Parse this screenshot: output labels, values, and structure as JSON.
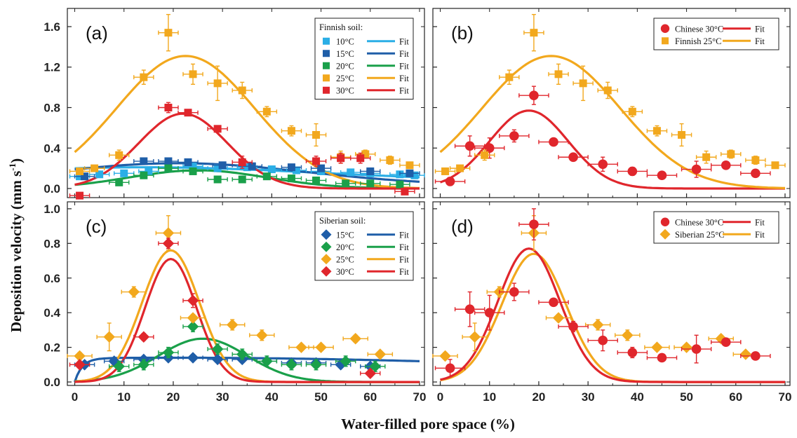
{
  "colors": {
    "c10": "#2aaee6",
    "c15": "#1f5ea8",
    "c20": "#1aa04a",
    "c25": "#f2a81d",
    "c30": "#e0262c"
  },
  "axis": {
    "ylabel_main": "Deposition velocity (mm s",
    "ylabel_sup": "-1",
    "ylabel_end": ")",
    "xlabel": "Water-filled pore space (%)",
    "xticks": [
      0,
      10,
      20,
      30,
      40,
      50,
      60,
      70
    ],
    "xtick_labels": [
      "0",
      "10",
      "20",
      "30",
      "40",
      "50",
      "60",
      "70"
    ],
    "yticks_top": [
      0,
      0.4,
      0.8,
      1.2,
      1.6
    ],
    "ytick_labels_top": [
      "0.0",
      "0.4",
      "0.8",
      "1.2",
      "1.6"
    ],
    "yticks_bottom": [
      0,
      0.2,
      0.4,
      0.6,
      0.8,
      1.0
    ],
    "ytick_labels_bottom": [
      "0.0",
      "0.2",
      "0.4",
      "0.6",
      "0.8",
      "1.0"
    ]
  },
  "chart_data": [
    {
      "panel": "a",
      "label": "(a)",
      "type": "scatter",
      "xlim": [
        -1.5,
        71
      ],
      "ylim": [
        -0.09,
        1.78
      ],
      "legend": {
        "title": "Finnish soil:",
        "placement": "top-right",
        "fit_label": "Fit",
        "entries": [
          {
            "label": "10°C",
            "color_key": "c10",
            "marker": "square"
          },
          {
            "label": "15°C",
            "color_key": "c15",
            "marker": "square"
          },
          {
            "label": "20°C",
            "color_key": "c20",
            "marker": "square"
          },
          {
            "label": "25°C",
            "color_key": "c25",
            "marker": "square"
          },
          {
            "label": "30°C",
            "color_key": "c30",
            "marker": "square"
          }
        ]
      },
      "series": [
        {
          "name": "10°C",
          "color_key": "c10",
          "marker": "square",
          "x": [
            1,
            5,
            10,
            15,
            19,
            24,
            29,
            35,
            40,
            45,
            50,
            56,
            60,
            66,
            69
          ],
          "y": [
            0.12,
            0.14,
            0.15,
            0.17,
            0.2,
            0.22,
            0.2,
            0.21,
            0.19,
            0.18,
            0.17,
            0.16,
            0.15,
            0.14,
            0.13
          ],
          "xerr": 2,
          "yerr": 0.02,
          "fit": {
            "A": 0.14,
            "mu": 14,
            "sigma": 36,
            "base": 0.07
          }
        },
        {
          "name": "15°C",
          "color_key": "c15",
          "marker": "square",
          "x": [
            2,
            14,
            19,
            23,
            30,
            36,
            44,
            50,
            60,
            68
          ],
          "y": [
            0.12,
            0.27,
            0.27,
            0.26,
            0.23,
            0.22,
            0.21,
            0.2,
            0.17,
            0.15
          ],
          "xerr": 2,
          "yerr": 0.03,
          "fit": {
            "A": 0.22,
            "mu": 21,
            "sigma": 26,
            "base": 0.03
          }
        },
        {
          "name": "20°C",
          "color_key": "c20",
          "marker": "square",
          "x": [
            9,
            14,
            19,
            24,
            29,
            34,
            39,
            44,
            49,
            55,
            60,
            66
          ],
          "y": [
            0.06,
            0.13,
            0.2,
            0.17,
            0.09,
            0.09,
            0.12,
            0.1,
            0.08,
            0.05,
            0.05,
            0.04
          ],
          "xerr": 2,
          "yerr": 0.03,
          "fit": {
            "A": 0.18,
            "mu": 25,
            "sigma": 14,
            "base": 0.0
          }
        },
        {
          "name": "25°C",
          "color_key": "c25",
          "marker": "square",
          "x": [
            1,
            4,
            9,
            14,
            19,
            24,
            29,
            34,
            39,
            44,
            49,
            54,
            59,
            64,
            68
          ],
          "y": [
            0.17,
            0.2,
            0.33,
            1.1,
            1.54,
            1.13,
            1.04,
            0.97,
            0.76,
            0.57,
            0.53,
            0.31,
            0.34,
            0.28,
            0.23
          ],
          "xerr": 2,
          "yerr": [
            0.03,
            0.03,
            0.05,
            0.07,
            0.18,
            0.1,
            0.17,
            0.08,
            0.05,
            0.05,
            0.11,
            0.06,
            0.04,
            0.04,
            0.03
          ],
          "fit": {
            "A": 1.31,
            "mu": 22.5,
            "sigma": 14,
            "base": 0.0
          }
        },
        {
          "name": "30°C",
          "color_key": "c30",
          "marker": "square",
          "x": [
            1,
            19,
            23,
            29,
            34,
            49,
            54,
            58,
            67
          ],
          "y": [
            -0.07,
            0.8,
            0.75,
            0.59,
            0.26,
            0.27,
            0.3,
            0.3,
            -0.03
          ],
          "xerr": 2,
          "yerr": [
            0.02,
            0.05,
            0.03,
            0.03,
            0.06,
            0.05,
            0.05,
            0.05,
            0.02
          ],
          "fit": {
            "A": 0.74,
            "mu": 22,
            "sigma": 9,
            "base": 0.0
          }
        }
      ]
    },
    {
      "panel": "b",
      "label": "(b)",
      "type": "scatter",
      "xlim": [
        -1.5,
        71
      ],
      "ylim": [
        -0.09,
        1.78
      ],
      "legend": {
        "placement": "top-right",
        "fit_label": "Fit",
        "entries": [
          {
            "label": "Chinese 30°C",
            "color_key": "c30",
            "marker": "circle"
          },
          {
            "label": "Finnish 25°C",
            "color_key": "c25",
            "marker": "square"
          }
        ]
      },
      "series": [
        {
          "name": "Chinese 30°C",
          "color_key": "c30",
          "marker": "circle",
          "x": [
            2,
            6,
            10,
            15,
            19,
            23,
            27,
            33,
            39,
            45,
            52,
            58,
            64
          ],
          "y": [
            0.07,
            0.42,
            0.4,
            0.52,
            0.92,
            0.46,
            0.31,
            0.24,
            0.17,
            0.13,
            0.19,
            0.23,
            0.15
          ],
          "xerr": 3,
          "yerr": [
            0.04,
            0.1,
            0.1,
            0.06,
            0.09,
            0.02,
            0.03,
            0.07,
            0.04,
            0.02,
            0.08,
            0.02,
            0.02
          ],
          "fit": {
            "A": 0.77,
            "mu": 18,
            "sigma": 8,
            "base": 0.0
          }
        },
        {
          "name": "Finnish 25°C",
          "color_key": "c25",
          "marker": "square",
          "x": [
            1,
            4,
            9,
            14,
            19,
            24,
            29,
            34,
            39,
            44,
            49,
            54,
            59,
            64,
            68
          ],
          "y": [
            0.17,
            0.2,
            0.33,
            1.1,
            1.54,
            1.13,
            1.04,
            0.97,
            0.76,
            0.57,
            0.53,
            0.31,
            0.34,
            0.28,
            0.23
          ],
          "xerr": 2,
          "yerr": [
            0.03,
            0.03,
            0.05,
            0.07,
            0.18,
            0.1,
            0.17,
            0.08,
            0.05,
            0.05,
            0.11,
            0.06,
            0.04,
            0.04,
            0.03
          ],
          "fit": {
            "A": 1.31,
            "mu": 22.5,
            "sigma": 14,
            "base": 0.0
          }
        }
      ]
    },
    {
      "panel": "c",
      "label": "(c)",
      "type": "scatter",
      "xlim": [
        -1.5,
        71
      ],
      "ylim": [
        -0.02,
        1.04
      ],
      "legend": {
        "title": "Siberian soil:",
        "placement": "top-right",
        "fit_label": "Fit",
        "entries": [
          {
            "label": "15°C",
            "color_key": "c15",
            "marker": "diamond"
          },
          {
            "label": "20°C",
            "color_key": "c20",
            "marker": "diamond"
          },
          {
            "label": "25°C",
            "color_key": "c25",
            "marker": "diamond"
          },
          {
            "label": "30°C",
            "color_key": "c30",
            "marker": "diamond"
          }
        ]
      },
      "series": [
        {
          "name": "15°C",
          "color_key": "c15",
          "marker": "diamond",
          "x": [
            2,
            8,
            14,
            19,
            24,
            29,
            34,
            39,
            44,
            49,
            54,
            60
          ],
          "y": [
            0.1,
            0.12,
            0.13,
            0.14,
            0.14,
            0.13,
            0.13,
            0.12,
            0.11,
            0.11,
            0.1,
            0.09
          ],
          "xerr": 2,
          "yerr": 0.01,
          "fit": {
            "A": 0.14,
            "mu": 20,
            "sigma": 90,
            "base": 0.0,
            "rise": 1.5
          }
        },
        {
          "name": "20°C",
          "color_key": "c20",
          "marker": "diamond",
          "x": [
            9,
            14,
            19,
            24,
            29,
            34,
            39,
            44,
            49,
            55,
            61
          ],
          "y": [
            0.09,
            0.1,
            0.17,
            0.32,
            0.19,
            0.16,
            0.12,
            0.1,
            0.1,
            0.12,
            0.09
          ],
          "xerr": 2,
          "yerr": 0.03,
          "fit": {
            "A": 0.25,
            "mu": 26,
            "sigma": 9,
            "base": 0.0
          }
        },
        {
          "name": "25°C",
          "color_key": "c25",
          "marker": "diamond",
          "x": [
            1,
            7,
            12,
            19,
            24,
            32,
            38,
            46,
            50,
            57,
            62
          ],
          "y": [
            0.15,
            0.26,
            0.52,
            0.86,
            0.37,
            0.33,
            0.27,
            0.2,
            0.2,
            0.25,
            0.16
          ],
          "xerr": 2.5,
          "yerr": [
            0.02,
            0.08,
            0.03,
            0.1,
            0.02,
            0.03,
            0.03,
            0.01,
            0.01,
            0.02,
            0.01
          ],
          "fit": {
            "A": 0.76,
            "mu": 19.5,
            "sigma": 5.8,
            "base": 0.0
          }
        },
        {
          "name": "30°C",
          "color_key": "c30",
          "marker": "diamond",
          "x": [
            1,
            14,
            19,
            24,
            60
          ],
          "y": [
            0.1,
            0.26,
            0.8,
            0.47,
            0.05
          ],
          "xerr": 2,
          "yerr": [
            0.02,
            0.02,
            0.03,
            0.04,
            0.02
          ],
          "fit": {
            "A": 0.71,
            "mu": 19.5,
            "sigma": 5.2,
            "base": 0.0
          }
        }
      ]
    },
    {
      "panel": "d",
      "label": "(d)",
      "type": "scatter",
      "xlim": [
        -1.5,
        71
      ],
      "ylim": [
        -0.02,
        1.04
      ],
      "legend": {
        "placement": "top-right",
        "fit_label": "Fit",
        "entries": [
          {
            "label": "Chinese 30°C",
            "color_key": "c30",
            "marker": "circle"
          },
          {
            "label": "Siberian 25°C",
            "color_key": "c25",
            "marker": "diamond"
          }
        ]
      },
      "series": [
        {
          "name": "Siberian 25°C",
          "color_key": "c25",
          "marker": "diamond",
          "x": [
            1,
            7,
            12,
            19,
            24,
            32,
            38,
            44,
            50,
            57,
            62
          ],
          "y": [
            0.15,
            0.26,
            0.52,
            0.86,
            0.37,
            0.33,
            0.27,
            0.2,
            0.2,
            0.25,
            0.16
          ],
          "xerr": 2.5,
          "yerr": [
            0.02,
            0.08,
            0.03,
            0.1,
            0.02,
            0.03,
            0.03,
            0.01,
            0.01,
            0.02,
            0.01
          ],
          "fit": {
            "A": 0.74,
            "mu": 19,
            "sigma": 6.5,
            "base": 0.0
          }
        },
        {
          "name": "Chinese 30°C",
          "color_key": "c30",
          "marker": "circle",
          "x": [
            2,
            6,
            10,
            15,
            19,
            23,
            27,
            33,
            39,
            45,
            52,
            58,
            64
          ],
          "y": [
            0.08,
            0.42,
            0.4,
            0.52,
            0.91,
            0.46,
            0.32,
            0.24,
            0.17,
            0.14,
            0.19,
            0.23,
            0.15
          ],
          "xerr": 3,
          "yerr": [
            0.05,
            0.1,
            0.1,
            0.05,
            0.09,
            0.02,
            0.03,
            0.06,
            0.03,
            0.02,
            0.08,
            0.02,
            0.02
          ],
          "fit": {
            "A": 0.77,
            "mu": 18,
            "sigma": 6.3,
            "base": 0.0
          }
        }
      ]
    }
  ]
}
